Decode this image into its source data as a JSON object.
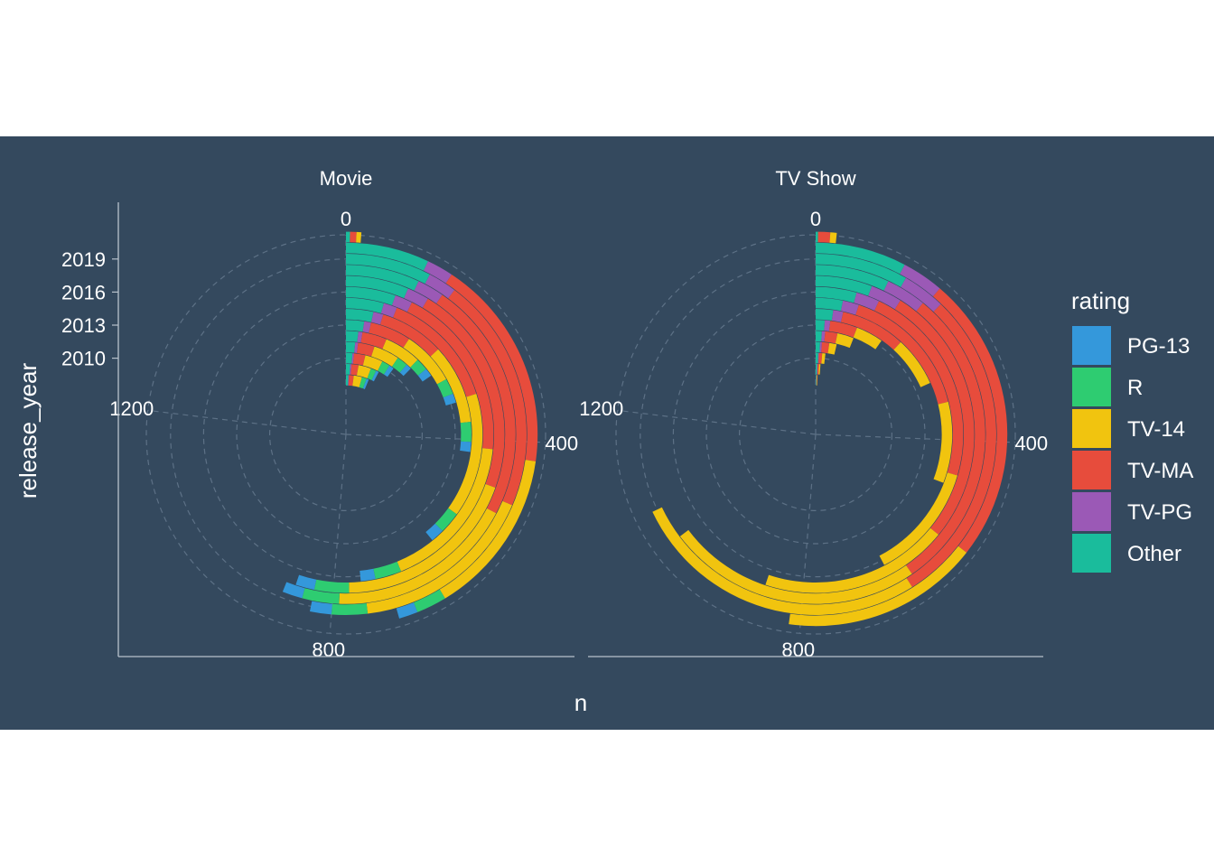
{
  "chart_data": {
    "type": "polar-stacked-bar",
    "background": "#34495e",
    "xlabel": "n",
    "ylabel": "release_year",
    "y_ticks": [
      "2010",
      "2013",
      "2016",
      "2019"
    ],
    "theta_ticks": [
      "0",
      "400",
      "800",
      "1200"
    ],
    "theta_range": [
      0,
      1560
    ],
    "legend": {
      "title": "rating",
      "position": "right",
      "items": [
        {
          "label": "PG-13",
          "color": "#3498db"
        },
        {
          "label": "R",
          "color": "#2ecc71"
        },
        {
          "label": "TV-14",
          "color": "#f1c40f"
        },
        {
          "label": "TV-MA",
          "color": "#e74c3c"
        },
        {
          "label": "TV-PG",
          "color": "#9b59b6"
        },
        {
          "label": "Other",
          "color": "#1abc9c"
        }
      ]
    },
    "stack_order": [
      "Other",
      "TV-PG",
      "TV-MA",
      "TV-14",
      "R",
      "PG-13"
    ],
    "years": [
      2008,
      2009,
      2010,
      2011,
      2012,
      2013,
      2014,
      2015,
      2016,
      2017,
      2018,
      2019,
      2020,
      2021
    ],
    "facets": [
      {
        "title": "Movie",
        "values": {
          "Other": [
            10,
            15,
            20,
            25,
            30,
            40,
            55,
            70,
            85,
            100,
            110,
            120,
            110,
            5
          ],
          "TV-PG": [
            3,
            5,
            5,
            8,
            10,
            15,
            20,
            25,
            30,
            35,
            40,
            40,
            35,
            0
          ],
          "TV-MA": [
            20,
            25,
            35,
            45,
            60,
            90,
            130,
            220,
            300,
            340,
            360,
            330,
            280,
            8
          ],
          "TV-14": [
            35,
            45,
            55,
            70,
            90,
            120,
            160,
            230,
            270,
            300,
            280,
            260,
            220,
            6
          ],
          "R": [
            20,
            20,
            25,
            30,
            30,
            35,
            40,
            40,
            45,
            55,
            55,
            50,
            40,
            0
          ],
          "PG-13": [
            10,
            10,
            15,
            15,
            20,
            20,
            20,
            25,
            25,
            30,
            30,
            30,
            25,
            0
          ]
        }
      },
      {
        "title": "TV Show",
        "values": {
          "Other": [
            3,
            5,
            8,
            12,
            15,
            20,
            35,
            50,
            70,
            90,
            110,
            130,
            120,
            3
          ],
          "TV-PG": [
            1,
            2,
            2,
            5,
            8,
            12,
            20,
            30,
            40,
            50,
            60,
            60,
            55,
            0
          ],
          "TV-MA": [
            2,
            5,
            10,
            20,
            30,
            60,
            130,
            250,
            350,
            420,
            460,
            450,
            380,
            15
          ],
          "TV-14": [
            2,
            5,
            10,
            20,
            40,
            60,
            100,
            150,
            200,
            300,
            380,
            420,
            260,
            8
          ],
          "R": [
            0,
            0,
            0,
            0,
            0,
            0,
            0,
            0,
            0,
            0,
            0,
            0,
            0,
            0
          ],
          "PG-13": [
            0,
            0,
            0,
            0,
            0,
            0,
            0,
            0,
            0,
            0,
            0,
            0,
            0,
            0
          ]
        }
      }
    ]
  }
}
